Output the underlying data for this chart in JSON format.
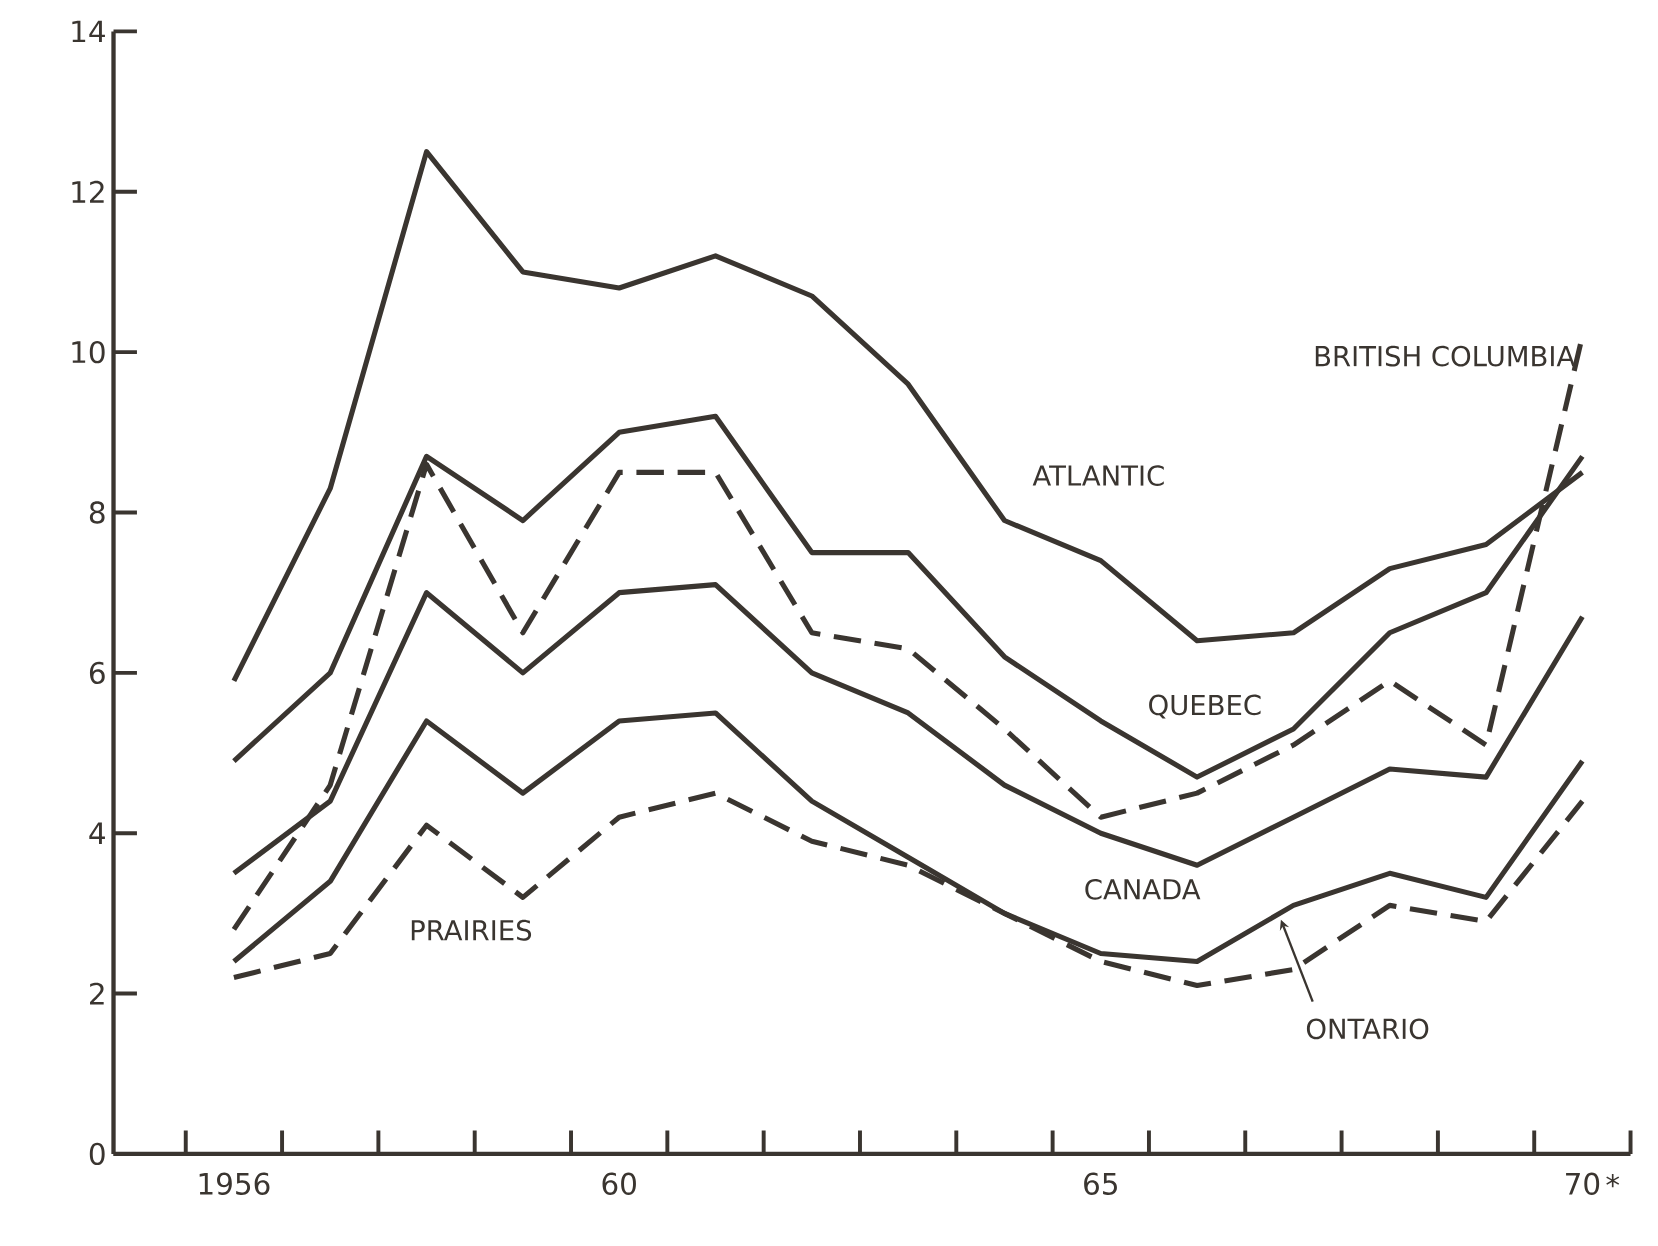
{
  "chart_data": {
    "type": "line",
    "x": [
      1956,
      1957,
      1958,
      1959,
      1960,
      1961,
      1962,
      1963,
      1964,
      1965,
      1966,
      1967,
      1968,
      1969,
      1970
    ],
    "series": [
      {
        "name": "ATLANTIC",
        "color": "#3a3530",
        "line_style": "solid",
        "values": [
          5.9,
          8.3,
          12.5,
          11.0,
          10.8,
          11.2,
          10.7,
          9.6,
          7.9,
          7.4,
          6.4,
          6.5,
          7.3,
          7.6,
          8.5
        ]
      },
      {
        "name": "BRITISH COLUMBIA",
        "color": "#3a3530",
        "line_style": "dashed",
        "values": [
          2.8,
          4.6,
          8.6,
          6.5,
          8.5,
          8.5,
          6.5,
          6.3,
          5.3,
          4.2,
          4.5,
          5.1,
          5.9,
          5.1,
          10.2
        ]
      },
      {
        "name": "QUEBEC",
        "color": "#3a3530",
        "line_style": "solid",
        "values": [
          4.9,
          6.0,
          8.7,
          7.9,
          9.0,
          9.2,
          7.5,
          7.5,
          6.2,
          5.4,
          4.7,
          5.3,
          6.5,
          7.0,
          8.7
        ]
      },
      {
        "name": "CANADA",
        "color": "#3a3530",
        "line_style": "solid",
        "values": [
          3.5,
          4.4,
          7.0,
          6.0,
          7.0,
          7.1,
          6.0,
          5.5,
          4.6,
          4.0,
          3.6,
          4.2,
          4.8,
          4.7,
          6.7
        ]
      },
      {
        "name": "ONTARIO",
        "color": "#3a3530",
        "line_style": "solid",
        "values": [
          2.4,
          3.4,
          5.4,
          4.5,
          5.4,
          5.5,
          4.4,
          3.7,
          3.0,
          2.5,
          2.4,
          3.1,
          3.5,
          3.2,
          4.9
        ]
      },
      {
        "name": "PRAIRIES",
        "color": "#3a3530",
        "line_style": "dashed",
        "values": [
          2.2,
          2.5,
          4.1,
          3.2,
          4.2,
          4.5,
          3.9,
          3.6,
          3.0,
          2.4,
          2.1,
          2.3,
          3.1,
          2.9,
          4.4
        ]
      }
    ],
    "xlim": [
      1954.75,
      1970.5
    ],
    "xticks": [
      {
        "value": 1955.5,
        "label": null
      },
      {
        "value": 1956,
        "label": "1956"
      },
      {
        "value": 1956.5,
        "label": null
      },
      {
        "value": 1957.5,
        "label": null
      },
      {
        "value": 1958.5,
        "label": null
      },
      {
        "value": 1959.5,
        "label": null
      },
      {
        "value": 1960,
        "label": "60"
      },
      {
        "value": 1960.5,
        "label": null
      },
      {
        "value": 1961.5,
        "label": null
      },
      {
        "value": 1962.5,
        "label": null
      },
      {
        "value": 1963.5,
        "label": null
      },
      {
        "value": 1964.5,
        "label": null
      },
      {
        "value": 1965,
        "label": "65"
      },
      {
        "value": 1965.5,
        "label": null
      },
      {
        "value": 1966.5,
        "label": null
      },
      {
        "value": 1967.5,
        "label": null
      },
      {
        "value": 1968.5,
        "label": null
      },
      {
        "value": 1969.5,
        "label": null
      },
      {
        "value": 1970,
        "label": "70"
      },
      {
        "value": 1970.5,
        "label": null
      }
    ],
    "ylim": [
      0,
      14
    ],
    "yticks": [
      0,
      2,
      4,
      6,
      8,
      10,
      12,
      14
    ],
    "annotations": [
      "*"
    ],
    "grid": false,
    "legend": false,
    "marker": "none"
  }
}
